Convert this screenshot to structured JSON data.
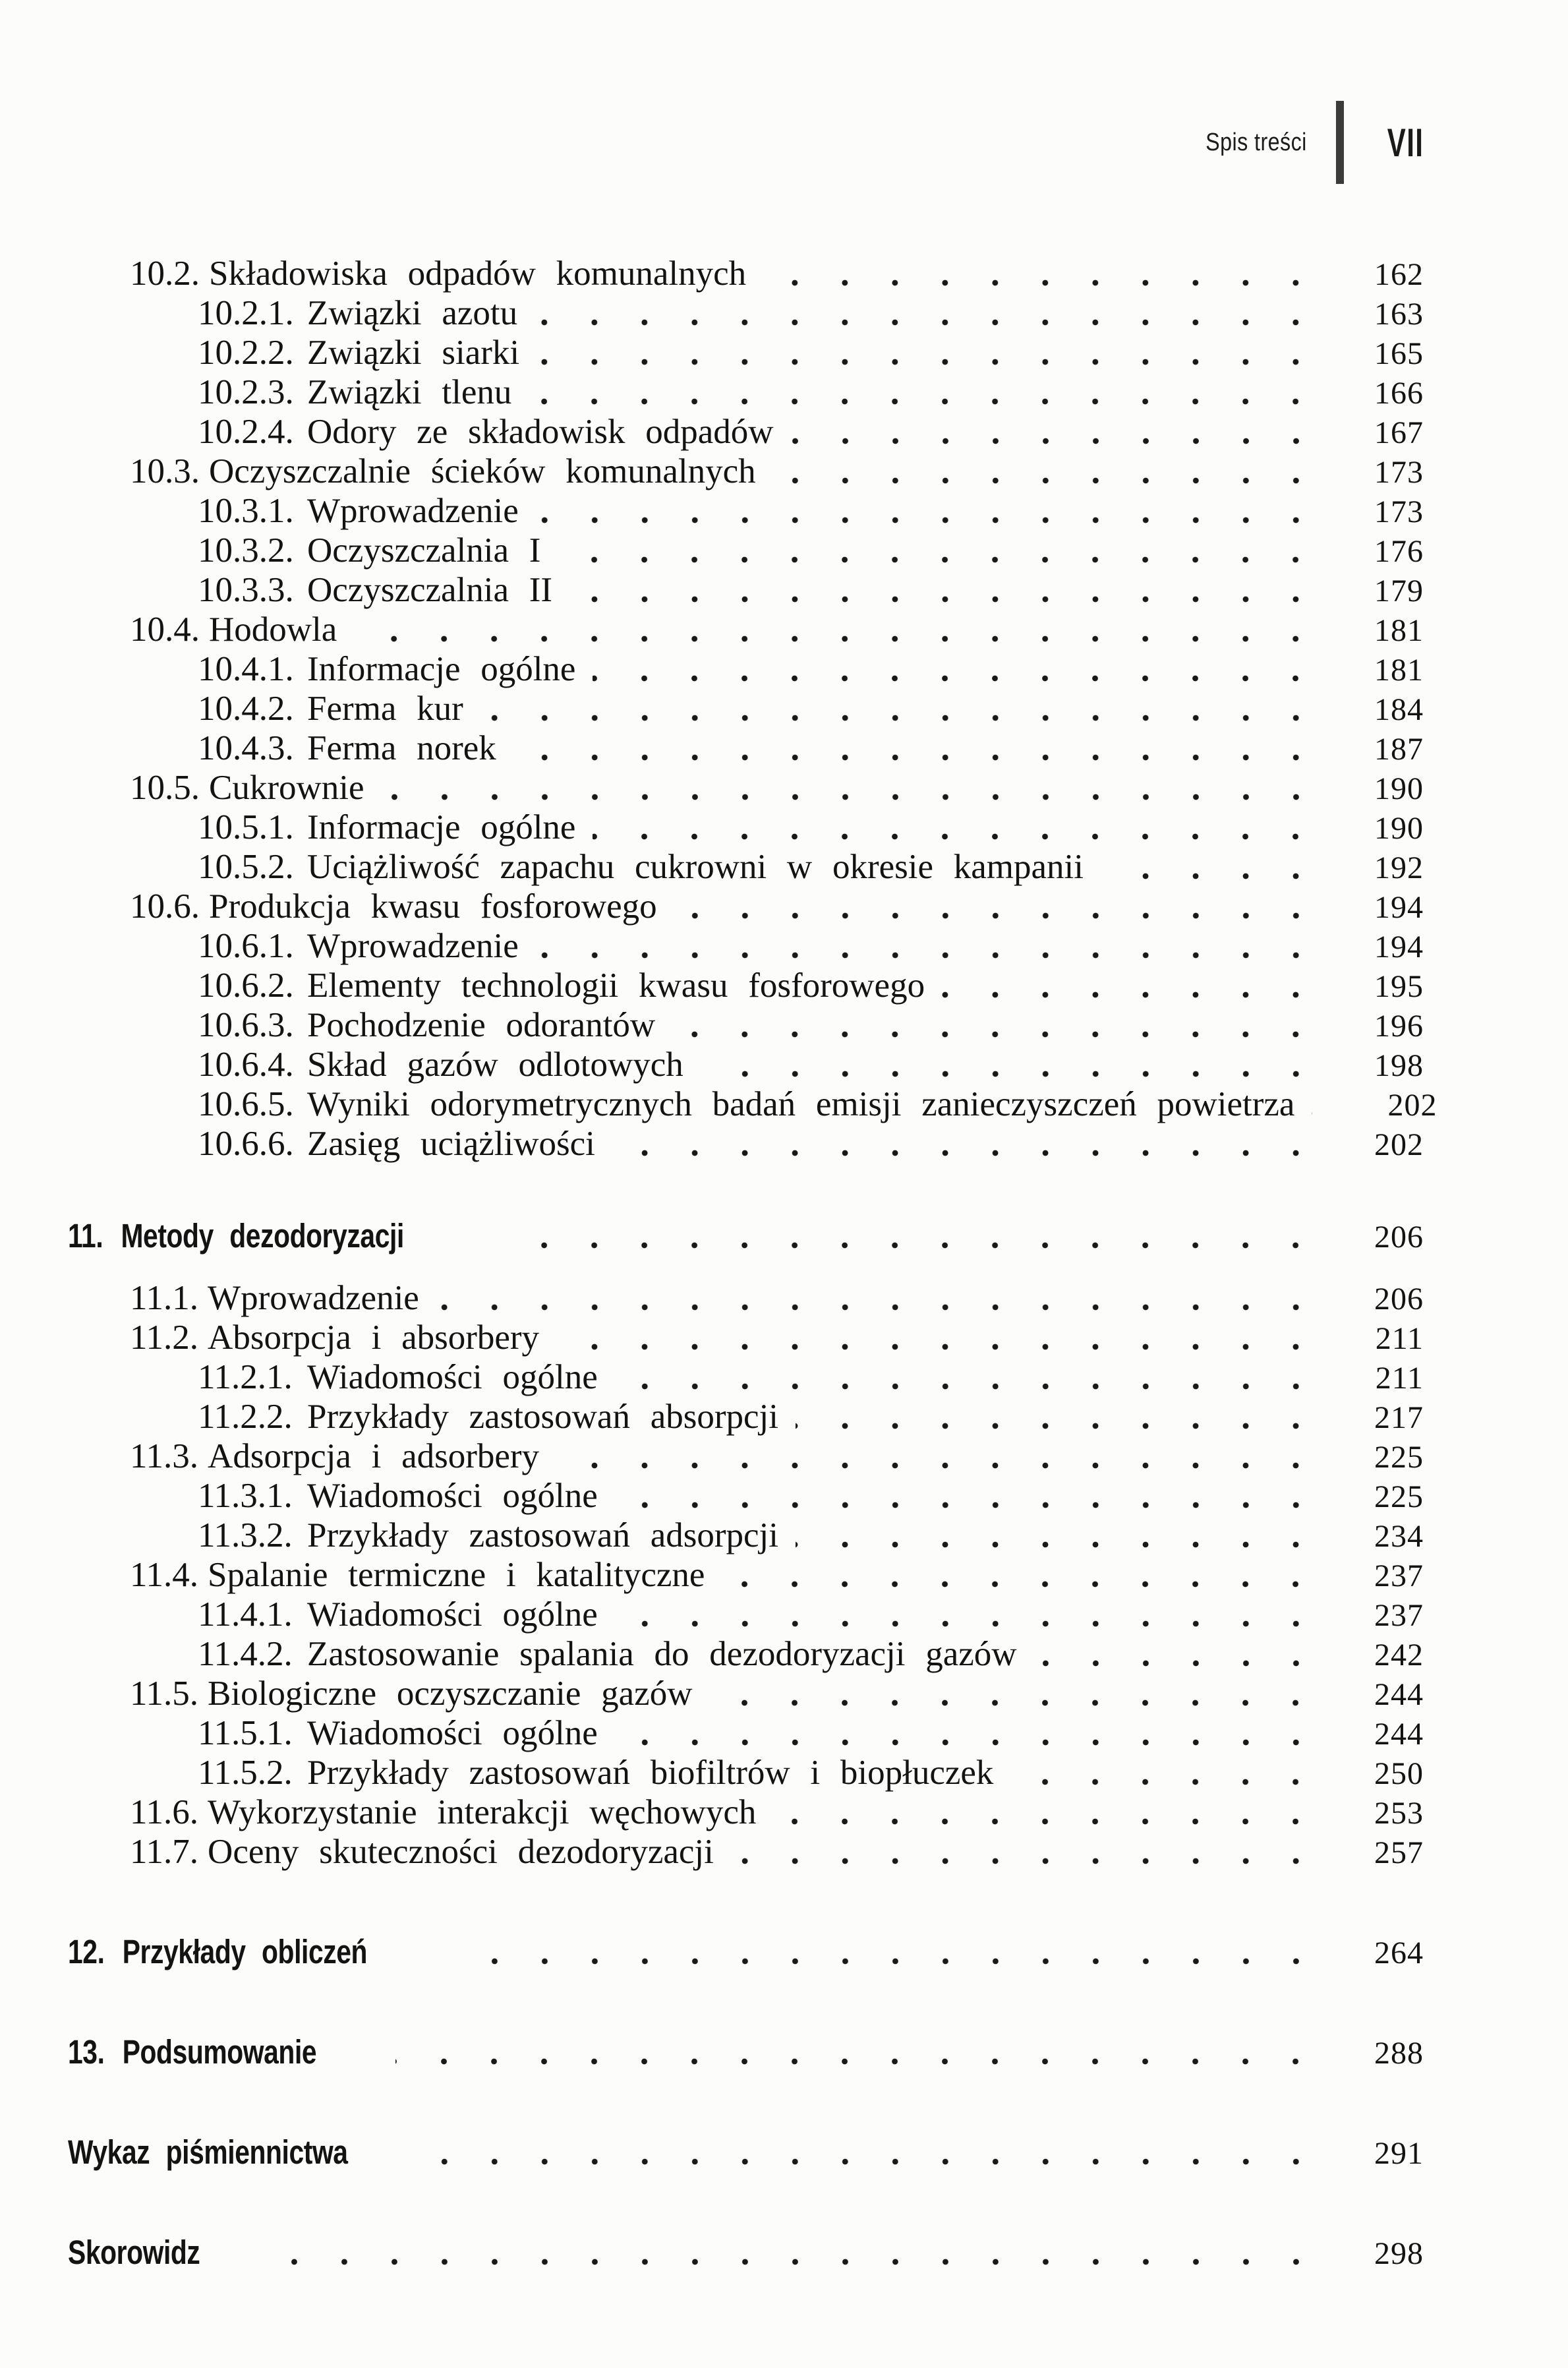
{
  "header": {
    "running_head": "Spis treści",
    "page_number": "VII"
  },
  "toc": {
    "entries": [
      {
        "level": "l1",
        "num": "10.2.",
        "text": "Składowiska odpadów komunalnych",
        "page": "162"
      },
      {
        "level": "l2",
        "num": "10.2.1.",
        "text": "Związki azotu",
        "page": "163"
      },
      {
        "level": "l2",
        "num": "10.2.2.",
        "text": "Związki siarki",
        "page": "165"
      },
      {
        "level": "l2",
        "num": "10.2.3.",
        "text": "Związki tlenu",
        "page": "166"
      },
      {
        "level": "l2",
        "num": "10.2.4.",
        "text": "Odory ze składowisk odpadów",
        "page": "167"
      },
      {
        "level": "l1",
        "num": "10.3.",
        "text": "Oczyszczalnie ścieków komunalnych",
        "page": "173"
      },
      {
        "level": "l2",
        "num": "10.3.1.",
        "text": "Wprowadzenie",
        "page": "173"
      },
      {
        "level": "l2",
        "num": "10.3.2.",
        "text": "Oczyszczalnia I",
        "page": "176"
      },
      {
        "level": "l2",
        "num": "10.3.3.",
        "text": "Oczyszczalnia II",
        "page": "179"
      },
      {
        "level": "l1",
        "num": "10.4.",
        "text": "Hodowla",
        "page": "181"
      },
      {
        "level": "l2",
        "num": "10.4.1.",
        "text": "Informacje ogólne",
        "page": "181"
      },
      {
        "level": "l2",
        "num": "10.4.2.",
        "text": "Ferma kur",
        "page": "184"
      },
      {
        "level": "l2",
        "num": "10.4.3.",
        "text": "Ferma norek",
        "page": "187"
      },
      {
        "level": "l1",
        "num": "10.5.",
        "text": "Cukrownie",
        "page": "190"
      },
      {
        "level": "l2",
        "num": "10.5.1.",
        "text": "Informacje ogólne",
        "page": "190"
      },
      {
        "level": "l2",
        "num": "10.5.2.",
        "text": "Uciążliwość zapachu cukrowni w okresie kampanii",
        "page": "192"
      },
      {
        "level": "l1",
        "num": "10.6.",
        "text": "Produkcja kwasu fosforowego",
        "page": "194"
      },
      {
        "level": "l2",
        "num": "10.6.1.",
        "text": "Wprowadzenie",
        "page": "194"
      },
      {
        "level": "l2",
        "num": "10.6.2.",
        "text": "Elementy technologii kwasu fosforowego",
        "page": "195"
      },
      {
        "level": "l2",
        "num": "10.6.3.",
        "text": "Pochodzenie odorantów",
        "page": "196"
      },
      {
        "level": "l2",
        "num": "10.6.4.",
        "text": "Skład gazów odlotowych",
        "page": "198"
      },
      {
        "level": "l2",
        "num": "10.6.5.",
        "text": "Wyniki odorymetrycznych badań emisji zanieczyszczeń powietrza",
        "page": "202"
      },
      {
        "level": "l2",
        "num": "10.6.6.",
        "text": "Zasięg uciążliwości",
        "page": "202"
      },
      {
        "level": "hopen",
        "num": "11.",
        "text": "Metody dezodoryzacji",
        "page": "206"
      },
      {
        "level": "l1",
        "num": "11.1.",
        "text": "Wprowadzenie",
        "page": "206"
      },
      {
        "level": "l1",
        "num": "11.2.",
        "text": "Absorpcja i absorbery",
        "page": "211"
      },
      {
        "level": "l2",
        "num": "11.2.1.",
        "text": "Wiadomości ogólne",
        "page": "211"
      },
      {
        "level": "l2",
        "num": "11.2.2.",
        "text": "Przykłady zastosowań absorpcji",
        "page": "217"
      },
      {
        "level": "l1",
        "num": "11.3.",
        "text": "Adsorpcja i adsorbery",
        "page": "225"
      },
      {
        "level": "l2",
        "num": "11.3.1.",
        "text": "Wiadomości ogólne",
        "page": "225"
      },
      {
        "level": "l2",
        "num": "11.3.2.",
        "text": "Przykłady zastosowań adsorpcji",
        "page": "234"
      },
      {
        "level": "l1",
        "num": "11.4.",
        "text": "Spalanie termiczne i katalityczne",
        "page": "237"
      },
      {
        "level": "l2",
        "num": "11.4.1.",
        "text": "Wiadomości ogólne",
        "page": "237"
      },
      {
        "level": "l2",
        "num": "11.4.2.",
        "text": "Zastosowanie spalania do dezodoryzacji gazów",
        "page": "242"
      },
      {
        "level": "l1",
        "num": "11.5.",
        "text": "Biologiczne oczyszczanie gazów",
        "page": "244"
      },
      {
        "level": "l2",
        "num": "11.5.1.",
        "text": "Wiadomości ogólne",
        "page": "244"
      },
      {
        "level": "l2",
        "num": "11.5.2.",
        "text": "Przykłady zastosowań biofiltrów i biopłuczek",
        "page": "250"
      },
      {
        "level": "l1",
        "num": "11.6.",
        "text": "Wykorzystanie interakcji węchowych",
        "page": "253"
      },
      {
        "level": "l1",
        "num": "11.7.",
        "text": "Oceny skuteczności dezodoryzacji",
        "page": "257"
      },
      {
        "level": "h",
        "num": "12.",
        "text": "Przykłady obliczeń",
        "page": "264"
      },
      {
        "level": "h",
        "num": "13.",
        "text": "Podsumowanie",
        "page": "288"
      },
      {
        "level": "h",
        "num": "",
        "text": "Wykaz piśmiennictwa",
        "page": "291"
      },
      {
        "level": "h",
        "num": "",
        "text": "Skorowidz",
        "page": "298"
      }
    ]
  }
}
